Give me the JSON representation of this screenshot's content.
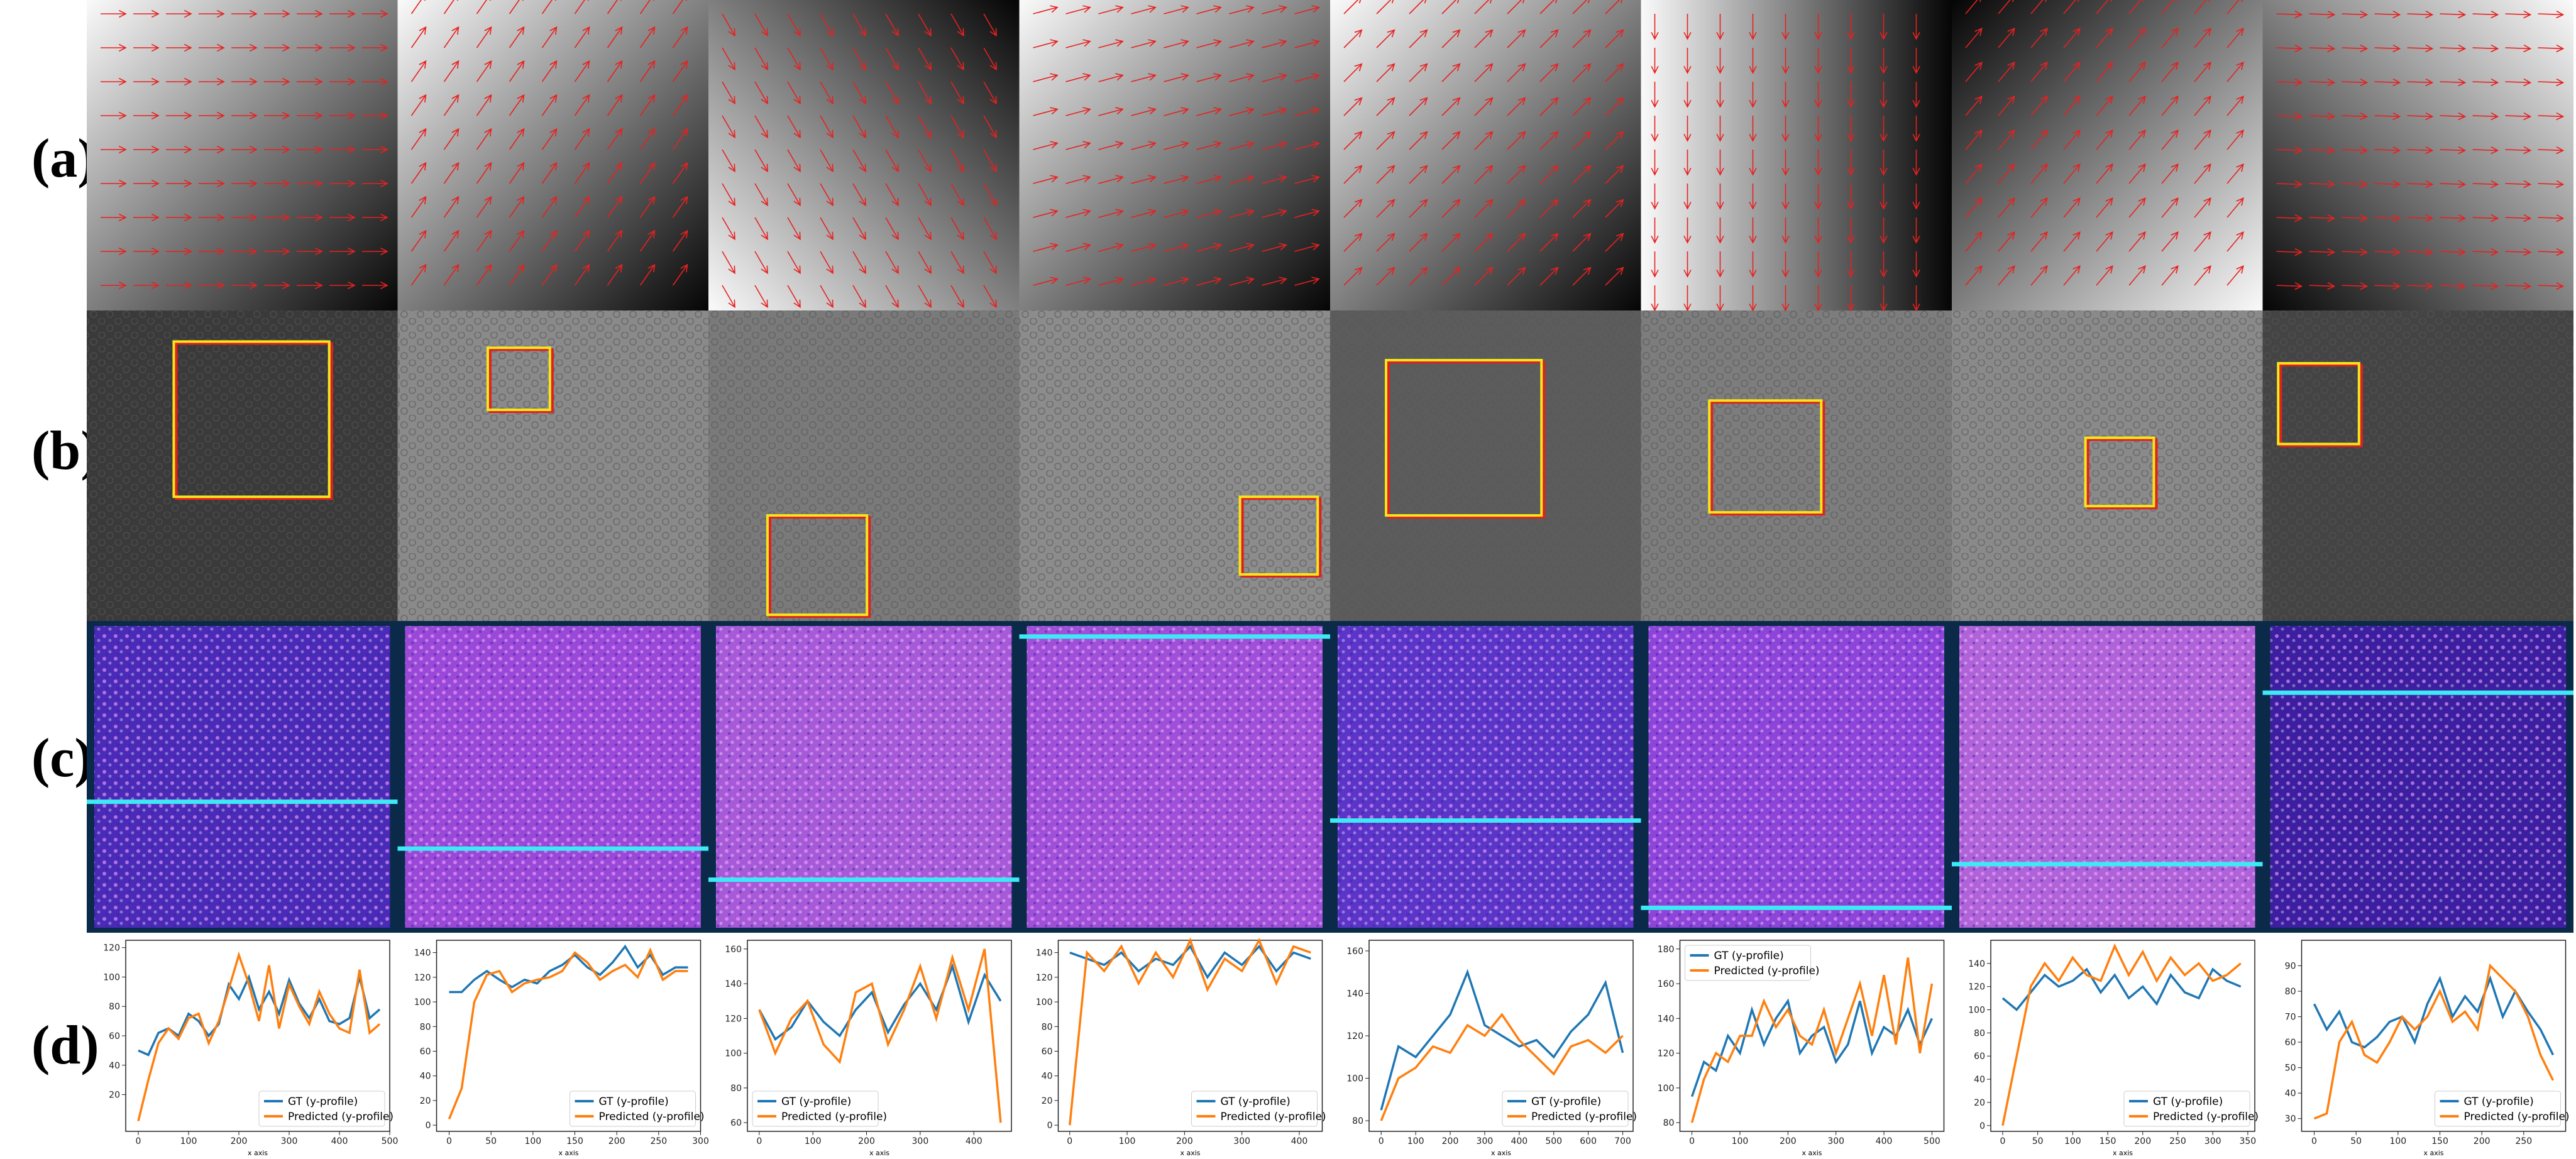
{
  "row_labels": [
    "(a)",
    "(b)",
    "(c)",
    "(d)"
  ],
  "chart_data": [
    {
      "type": "line",
      "xlabel": "x axis",
      "legend": "lower right",
      "xlim": [
        -25,
        500
      ],
      "ylim": [
        -5,
        125
      ],
      "xticks": [
        0,
        100,
        200,
        300,
        400,
        500
      ],
      "yticks": [
        20,
        40,
        60,
        80,
        100,
        120
      ],
      "x": [
        0,
        20,
        40,
        60,
        80,
        100,
        120,
        140,
        160,
        180,
        200,
        220,
        240,
        260,
        280,
        300,
        320,
        340,
        360,
        380,
        400,
        420,
        440,
        460,
        480
      ],
      "series": [
        {
          "name": "GT (y-profile)",
          "color": "#1f77b4",
          "values": [
            50,
            47,
            62,
            65,
            60,
            75,
            70,
            60,
            68,
            95,
            85,
            100,
            78,
            90,
            75,
            98,
            82,
            72,
            85,
            70,
            68,
            72,
            100,
            72,
            78
          ]
        },
        {
          "name": "Predicted (y-profile)",
          "color": "#ff7f0e",
          "values": [
            2,
            30,
            55,
            65,
            58,
            72,
            75,
            55,
            70,
            92,
            115,
            95,
            70,
            108,
            65,
            95,
            80,
            68,
            90,
            75,
            65,
            62,
            105,
            62,
            68
          ]
        }
      ]
    },
    {
      "type": "line",
      "xlabel": "x axis",
      "legend": "lower right",
      "xlim": [
        -15,
        300
      ],
      "ylim": [
        -5,
        150
      ],
      "xticks": [
        0,
        50,
        100,
        150,
        200,
        250,
        300
      ],
      "yticks": [
        0,
        20,
        40,
        60,
        80,
        100,
        120,
        140
      ],
      "x": [
        0,
        15,
        30,
        45,
        60,
        75,
        90,
        105,
        120,
        135,
        150,
        165,
        180,
        195,
        210,
        225,
        240,
        255,
        270,
        285
      ],
      "series": [
        {
          "name": "GT (y-profile)",
          "color": "#1f77b4",
          "values": [
            108,
            108,
            118,
            125,
            118,
            112,
            118,
            115,
            125,
            130,
            138,
            128,
            122,
            132,
            145,
            128,
            138,
            122,
            128,
            128
          ]
        },
        {
          "name": "Predicted (y-profile)",
          "color": "#ff7f0e",
          "values": [
            5,
            30,
            100,
            122,
            125,
            108,
            115,
            118,
            120,
            125,
            140,
            132,
            118,
            125,
            130,
            120,
            142,
            118,
            125,
            125
          ]
        }
      ]
    },
    {
      "type": "line",
      "xlabel": "x axis",
      "legend": "lower left",
      "xlim": [
        -22,
        470
      ],
      "ylim": [
        55,
        165
      ],
      "xticks": [
        0,
        100,
        200,
        300,
        400
      ],
      "yticks": [
        60,
        80,
        100,
        120,
        140,
        160
      ],
      "x": [
        0,
        30,
        60,
        90,
        120,
        150,
        180,
        210,
        240,
        270,
        300,
        330,
        360,
        390,
        420,
        450
      ],
      "series": [
        {
          "name": "GT (y-profile)",
          "color": "#1f77b4",
          "values": [
            125,
            108,
            115,
            130,
            118,
            110,
            125,
            135,
            112,
            128,
            140,
            125,
            150,
            118,
            145,
            130
          ]
        },
        {
          "name": "Predicted (y-profile)",
          "color": "#ff7f0e",
          "values": [
            125,
            100,
            120,
            130,
            105,
            95,
            135,
            140,
            105,
            125,
            150,
            120,
            155,
            125,
            160,
            60
          ]
        }
      ]
    },
    {
      "type": "line",
      "xlabel": "x axis",
      "legend": "lower right",
      "xlim": [
        -20,
        440
      ],
      "ylim": [
        -5,
        150
      ],
      "xticks": [
        0,
        100,
        200,
        300,
        400
      ],
      "yticks": [
        0,
        20,
        40,
        60,
        80,
        100,
        120,
        140
      ],
      "x": [
        0,
        30,
        60,
        90,
        120,
        150,
        180,
        210,
        240,
        270,
        300,
        330,
        360,
        390,
        420
      ],
      "series": [
        {
          "name": "GT (y-profile)",
          "color": "#1f77b4",
          "values": [
            140,
            135,
            130,
            140,
            125,
            135,
            130,
            145,
            120,
            140,
            130,
            145,
            125,
            140,
            135
          ]
        },
        {
          "name": "Predicted (y-profile)",
          "color": "#ff7f0e",
          "values": [
            0,
            140,
            125,
            145,
            115,
            140,
            120,
            150,
            110,
            135,
            125,
            150,
            115,
            145,
            140
          ]
        }
      ]
    },
    {
      "type": "line",
      "xlabel": "x axis",
      "legend": "lower right",
      "xlim": [
        -35,
        730
      ],
      "ylim": [
        75,
        165
      ],
      "xticks": [
        0,
        100,
        200,
        300,
        400,
        500,
        600,
        700
      ],
      "yticks": [
        80,
        100,
        120,
        140,
        160
      ],
      "x": [
        0,
        50,
        100,
        150,
        200,
        250,
        300,
        350,
        400,
        450,
        500,
        550,
        600,
        650,
        700
      ],
      "series": [
        {
          "name": "GT (y-profile)",
          "color": "#1f77b4",
          "values": [
            85,
            115,
            110,
            120,
            130,
            150,
            125,
            120,
            115,
            118,
            110,
            122,
            130,
            145,
            112
          ]
        },
        {
          "name": "Predicted (y-profile)",
          "color": "#ff7f0e",
          "values": [
            80,
            100,
            105,
            115,
            112,
            125,
            120,
            130,
            118,
            110,
            102,
            115,
            118,
            112,
            120
          ]
        }
      ]
    },
    {
      "type": "line",
      "xlabel": "x axis",
      "legend": "upper left",
      "xlim": [
        -25,
        525
      ],
      "ylim": [
        75,
        185
      ],
      "xticks": [
        0,
        100,
        200,
        300,
        400,
        500
      ],
      "yticks": [
        80,
        100,
        120,
        140,
        160,
        180
      ],
      "x": [
        0,
        25,
        50,
        75,
        100,
        125,
        150,
        175,
        200,
        225,
        250,
        275,
        300,
        325,
        350,
        375,
        400,
        425,
        450,
        475,
        500
      ],
      "series": [
        {
          "name": "GT (y-profile)",
          "color": "#1f77b4",
          "values": [
            95,
            115,
            110,
            130,
            120,
            145,
            125,
            140,
            150,
            120,
            130,
            135,
            115,
            125,
            150,
            120,
            135,
            130,
            145,
            125,
            140
          ]
        },
        {
          "name": "Predicted (y-profile)",
          "color": "#ff7f0e",
          "values": [
            80,
            105,
            120,
            115,
            130,
            130,
            150,
            135,
            145,
            130,
            125,
            145,
            120,
            140,
            160,
            130,
            165,
            125,
            175,
            120,
            160
          ]
        }
      ]
    },
    {
      "type": "line",
      "xlabel": "x axis",
      "legend": "lower right",
      "xlim": [
        -17,
        360
      ],
      "ylim": [
        -5,
        160
      ],
      "xticks": [
        0,
        50,
        100,
        150,
        200,
        250,
        300,
        350
      ],
      "yticks": [
        0,
        20,
        40,
        60,
        80,
        100,
        120,
        140
      ],
      "x": [
        0,
        20,
        40,
        60,
        80,
        100,
        120,
        140,
        160,
        180,
        200,
        220,
        240,
        260,
        280,
        300,
        320,
        340
      ],
      "series": [
        {
          "name": "GT (y-profile)",
          "color": "#1f77b4",
          "values": [
            110,
            100,
            115,
            130,
            120,
            125,
            135,
            115,
            130,
            110,
            120,
            105,
            130,
            115,
            110,
            135,
            125,
            120
          ]
        },
        {
          "name": "Predicted (y-profile)",
          "color": "#ff7f0e",
          "values": [
            0,
            60,
            120,
            140,
            125,
            145,
            130,
            125,
            155,
            130,
            150,
            125,
            145,
            130,
            140,
            125,
            130,
            140
          ]
        }
      ]
    },
    {
      "type": "line",
      "xlabel": "x axis",
      "legend": "lower right",
      "xlim": [
        -15,
        300
      ],
      "ylim": [
        25,
        100
      ],
      "xticks": [
        0,
        50,
        100,
        150,
        200,
        250
      ],
      "yticks": [
        30,
        40,
        50,
        60,
        70,
        80,
        90
      ],
      "x": [
        0,
        15,
        30,
        45,
        60,
        75,
        90,
        105,
        120,
        135,
        150,
        165,
        180,
        195,
        210,
        225,
        240,
        255,
        270,
        285
      ],
      "series": [
        {
          "name": "GT (y-profile)",
          "color": "#1f77b4",
          "values": [
            75,
            65,
            72,
            60,
            58,
            62,
            68,
            70,
            60,
            75,
            85,
            70,
            78,
            72,
            85,
            70,
            80,
            72,
            65,
            55
          ]
        },
        {
          "name": "Predicted (y-profile)",
          "color": "#ff7f0e",
          "values": [
            30,
            32,
            60,
            68,
            55,
            52,
            60,
            70,
            65,
            70,
            80,
            68,
            72,
            65,
            90,
            85,
            80,
            70,
            55,
            45
          ]
        }
      ]
    }
  ]
}
